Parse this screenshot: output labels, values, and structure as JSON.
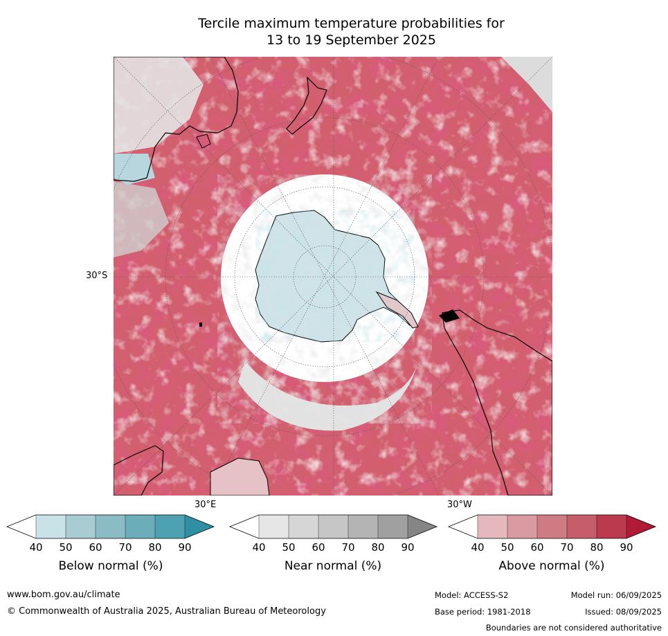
{
  "title_line1": "Tercile maximum temperature probabilities for",
  "title_line2": "13 to 19 September 2025",
  "map": {
    "lat_label": "30°S",
    "lon_label_left": "30°E",
    "lon_label_right": "30°W",
    "ocean_base_color": "#d9596a",
    "land_outline_color": "#000000"
  },
  "colorbars": [
    {
      "name": "below",
      "title": "Below normal (%)",
      "ticks": [
        "40",
        "50",
        "60",
        "70",
        "80",
        "90"
      ],
      "colors": [
        "#c9e2e8",
        "#a9cbd2",
        "#8bbbc4",
        "#6cadba",
        "#4da1b0",
        "#2f8fa3"
      ]
    },
    {
      "name": "near",
      "title": "Near normal (%)",
      "ticks": [
        "40",
        "50",
        "60",
        "70",
        "80",
        "90"
      ],
      "colors": [
        "#e6e6e6",
        "#d6d6d6",
        "#c6c6c6",
        "#b4b4b4",
        "#a0a0a0",
        "#858585"
      ]
    },
    {
      "name": "above",
      "title": "Above normal (%)",
      "ticks": [
        "40",
        "50",
        "60",
        "70",
        "80",
        "90"
      ],
      "colors": [
        "#e5b8bd",
        "#da9aa1",
        "#cf7b84",
        "#c65d6a",
        "#bb3a4d",
        "#b01a35"
      ]
    }
  ],
  "footer": {
    "url": "www.bom.gov.au/climate",
    "copyright": "© Commonwealth of Australia 2025, Australian Bureau of Meteorology",
    "model": "Model: ACCESS-S2",
    "model_run": "Model run: 06/09/2025",
    "base_period": "Base period: 1981-2018",
    "issued": "Issued: 08/09/2025",
    "disclaimer": "Boundaries are not considered authoritative"
  }
}
